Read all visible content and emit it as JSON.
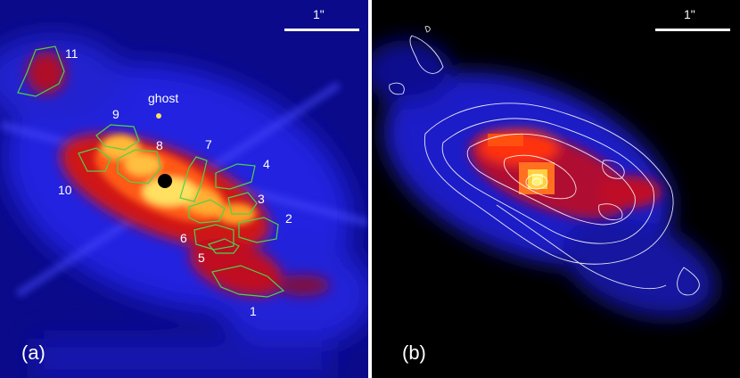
{
  "panel_a": {
    "label": "(a)",
    "scale_label": "1\"",
    "ghost_label": "ghost",
    "regions": [
      "1",
      "2",
      "3",
      "4",
      "5",
      "6",
      "7",
      "8",
      "9",
      "10",
      "11"
    ],
    "contour_color": "#4cd24c"
  },
  "panel_b": {
    "label": "(b)",
    "scale_label": "1\"",
    "contour_color": "#ffffff"
  },
  "colors": {
    "background": "#000000",
    "low": "#1a1aff",
    "mid": "#ff2a14",
    "high": "#ffe040",
    "separator": "#ffffff"
  }
}
